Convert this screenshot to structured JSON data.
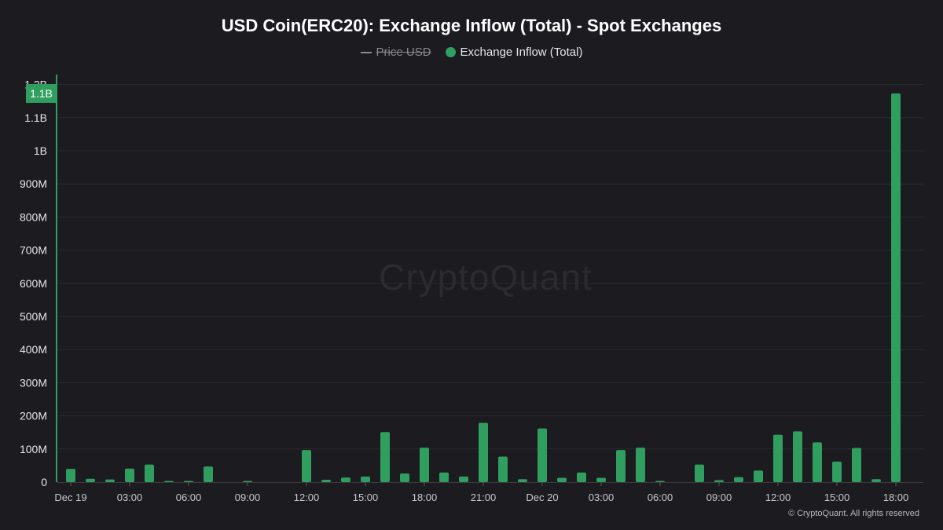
{
  "title": "USD Coin(ERC20): Exchange Inflow (Total) - Spot Exchanges",
  "legend": [
    {
      "label": "Price USD",
      "type": "line",
      "enabled": false,
      "color": "#8a8a8f"
    },
    {
      "label": "Exchange Inflow (Total)",
      "type": "dot",
      "enabled": true,
      "color": "#2f9e5f"
    }
  ],
  "watermark": "CryptoQuant",
  "copyright": "© CryptoQuant. All rights reserved",
  "crosshair_label": "1.1B",
  "colors": {
    "bar": "#2f9e5f",
    "background": "#1c1b20",
    "grid": "#2a2a30",
    "axis": "#2f9e5f"
  },
  "chart_data": {
    "type": "bar",
    "title": "USD Coin(ERC20): Exchange Inflow (Total) - Spot Exchanges",
    "xlabel": "",
    "ylabel": "",
    "ylim": [
      0,
      1200000000
    ],
    "yticks": [
      "0",
      "100M",
      "200M",
      "300M",
      "400M",
      "500M",
      "600M",
      "700M",
      "800M",
      "900M",
      "1B",
      "1.1B",
      "1.2B"
    ],
    "xtick_labels": [
      "Dec 19",
      "03:00",
      "06:00",
      "09:00",
      "12:00",
      "15:00",
      "18:00",
      "21:00",
      "Dec 20",
      "03:00",
      "06:00",
      "09:00",
      "12:00",
      "15:00",
      "18:00"
    ],
    "grid": true,
    "legend_position": "top",
    "categories": [
      "Dec 19 00:00",
      "01:00",
      "02:00",
      "03:00",
      "04:00",
      "05:00",
      "06:00",
      "07:00",
      "08:00",
      "09:00",
      "10:00",
      "11:00",
      "12:00",
      "13:00",
      "14:00",
      "15:00",
      "16:00",
      "17:00",
      "18:00",
      "19:00",
      "20:00",
      "21:00",
      "22:00",
      "23:00",
      "Dec 20 00:00",
      "01:00",
      "02:00",
      "03:00",
      "04:00",
      "05:00",
      "06:00",
      "07:00",
      "08:00",
      "09:00",
      "10:00",
      "11:00",
      "12:00",
      "13:00",
      "14:00",
      "15:00",
      "16:00",
      "17:00",
      "18:00"
    ],
    "series": [
      {
        "name": "Exchange Inflow (Total)",
        "unit": "USD",
        "values": [
          40000000,
          10000000,
          8000000,
          41000000,
          53000000,
          2000000,
          2000000,
          47000000,
          0,
          3000000,
          0,
          0,
          97000000,
          7000000,
          14000000,
          17000000,
          151000000,
          26000000,
          104000000,
          29000000,
          17000000,
          179000000,
          77000000,
          9000000,
          162000000,
          13000000,
          29000000,
          13000000,
          97000000,
          104000000,
          2000000,
          0,
          53000000,
          6000000,
          15000000,
          35000000,
          143000000,
          153000000,
          120000000,
          62000000,
          103000000,
          9000000,
          1173000000
        ]
      },
      {
        "name": "Price USD",
        "hidden": true,
        "values": []
      }
    ]
  }
}
